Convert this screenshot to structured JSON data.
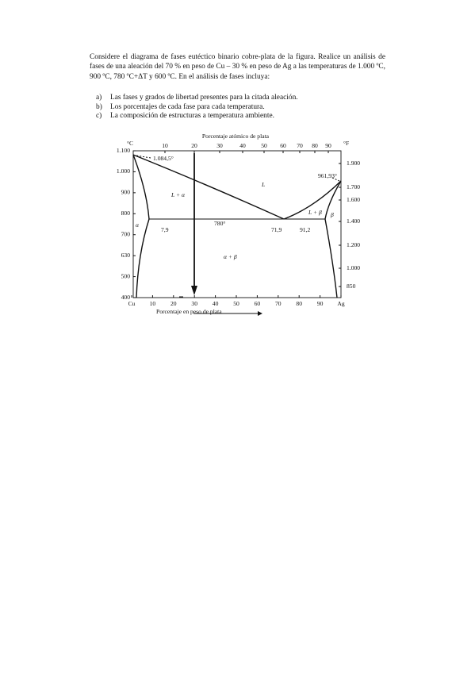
{
  "paragraph": "Considere el diagrama de fases eutéctico binario cobre-plata de la figura. Realice un análisis de fases de una aleación del 70 % en peso de Cu – 30 % en peso de Ag a las temperaturas de 1.000 ºC, 900 ºC, 780 ºC+ΔT y 600 ºC. En el análisis de fases incluya:",
  "list": [
    {
      "marker": "a)",
      "text": "Las fases y grados de libertad presentes para la citada aleación."
    },
    {
      "marker": "b)",
      "text": "Los porcentajes de cada fase para cada temperatura."
    },
    {
      "marker": "c)",
      "text": "La composición de estructuras a temperatura ambiente."
    }
  ],
  "figure": {
    "top_axis_title": "Porcentaje atómico de plata",
    "top_ticks": [
      "10",
      "20",
      "30",
      "40",
      "50",
      "60",
      "70",
      "80",
      "90"
    ],
    "left_unit": "°C",
    "right_unit": "°F",
    "left_ticks": [
      "1.100",
      "1.000",
      "900",
      "800",
      "700",
      "630",
      "500",
      "400"
    ],
    "right_ticks": [
      "1.900",
      "1.700",
      "1.600",
      "1.400",
      "1.200",
      "1.000",
      "850"
    ],
    "bottom_ticks": [
      "Cu",
      "10",
      "20",
      "30",
      "40",
      "50",
      "60",
      "70",
      "80",
      "90",
      "Ag"
    ],
    "bottom_axis_title": "Porcentaje en peso de plata",
    "labels": {
      "cu_melt": "1.084,5°",
      "ag_melt": "961,93°",
      "l_alpha": "L + α",
      "liquid": "L",
      "l_beta": "L + β",
      "beta": "β",
      "alpha": "α",
      "alpha_limit": "7,9",
      "eutectic_temp": "780°",
      "eutectic_comp": "71,9",
      "beta_limit": "91,2",
      "alpha_beta": "α + β"
    }
  }
}
